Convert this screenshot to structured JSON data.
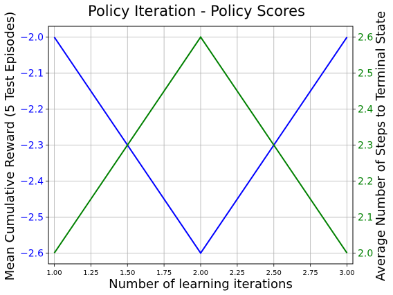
{
  "chart_data": {
    "type": "line",
    "title": "Policy Iteration - Policy Scores",
    "xlabel": "Number of learning iterations",
    "ylabel_left": "Mean Cumulative Reward (5 Test Episodes)",
    "ylabel_right": "Average Number of Steps to Terminal State",
    "x": [
      1.0,
      2.0,
      3.0
    ],
    "xlim": [
      0.96,
      3.04
    ],
    "ylim_left": [
      -2.63,
      -1.97
    ],
    "ylim_right": [
      1.97,
      2.63
    ],
    "xticks": [
      "1.00",
      "1.25",
      "1.50",
      "1.75",
      "2.00",
      "2.25",
      "2.50",
      "2.75",
      "3.00"
    ],
    "yticks_left": [
      "−2.0",
      "−2.1",
      "−2.2",
      "−2.3",
      "−2.4",
      "−2.5",
      "−2.6"
    ],
    "yticks_right": [
      "2.6",
      "2.5",
      "2.4",
      "2.3",
      "2.2",
      "2.1",
      "2.0"
    ],
    "grid": true,
    "series": [
      {
        "axis": "left",
        "color": "#0000ff",
        "values": [
          -2.0,
          -2.6,
          -2.0
        ]
      },
      {
        "axis": "right",
        "color": "#008000",
        "values": [
          2.0,
          2.6,
          2.0
        ]
      }
    ],
    "colors": {
      "left_axis": "#0000ff",
      "right_axis": "#008000"
    }
  }
}
